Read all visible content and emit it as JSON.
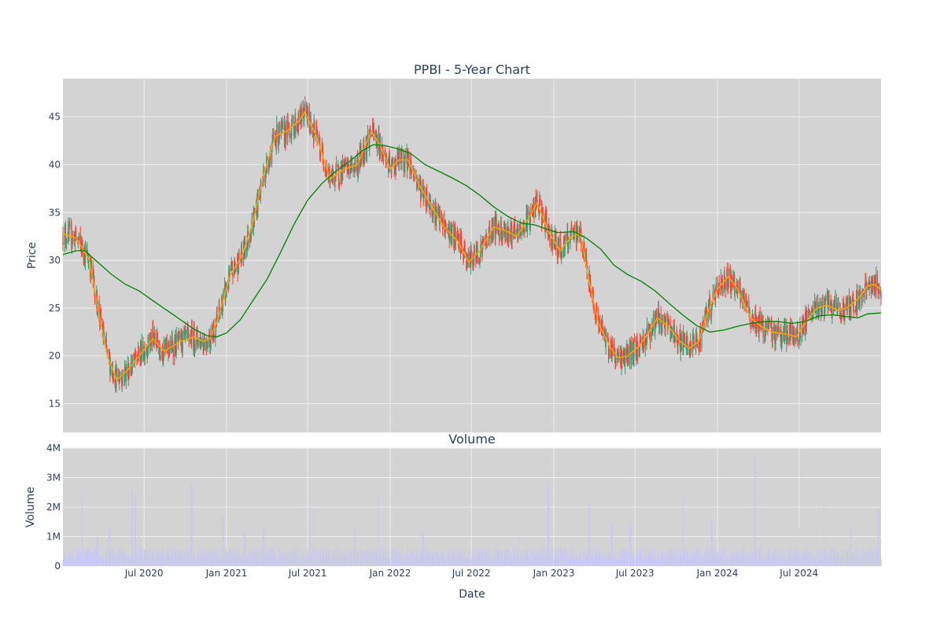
{
  "colors": {
    "background": "#ffffff",
    "plot_background": "#d3d3d3",
    "grid": "#eeeeee",
    "text": "#2a3f5f",
    "candle_up": "#3d9970",
    "candle_down": "#ff4136",
    "ma_short": "#ffa500",
    "ma_long": "#008000",
    "volume": "#c8c8f0"
  },
  "chart_data": [
    {
      "type": "candlestick",
      "title": "PPBI - 5-Year Chart",
      "ylabel": "Price",
      "xlabel": "",
      "x_range": [
        "2020-01-02",
        "2024-12-31"
      ],
      "ylim": [
        12,
        49
      ],
      "y_ticks": [
        15,
        20,
        25,
        30,
        35,
        40,
        45
      ],
      "grid": true,
      "legend": "none",
      "series": [
        {
          "type": "candlestick",
          "color_up": "#3d9970",
          "color_down": "#ff4136"
        },
        {
          "type": "line",
          "color": "#ffa500",
          "points": [
            [
              "2020-01-02",
              32.8
            ],
            [
              "2020-02-01",
              32.3
            ],
            [
              "2020-03-01",
              30.0
            ],
            [
              "2020-03-20",
              25.0
            ],
            [
              "2020-04-10",
              20.0
            ],
            [
              "2020-05-01",
              17.5
            ],
            [
              "2020-05-25",
              18.5
            ],
            [
              "2020-06-20",
              20.0
            ],
            [
              "2020-07-20",
              21.8
            ],
            [
              "2020-08-15",
              20.5
            ],
            [
              "2020-09-20",
              21.5
            ],
            [
              "2020-10-20",
              22.0
            ],
            [
              "2020-11-10",
              21.5
            ],
            [
              "2020-11-25",
              21.8
            ],
            [
              "2020-12-10",
              23.5
            ],
            [
              "2021-01-10",
              28.5
            ],
            [
              "2021-02-05",
              30.5
            ],
            [
              "2021-03-01",
              34.0
            ],
            [
              "2021-03-25",
              39.0
            ],
            [
              "2021-04-20",
              43.0
            ],
            [
              "2021-05-15",
              43.5
            ],
            [
              "2021-06-10",
              44.5
            ],
            [
              "2021-06-25",
              45.5
            ],
            [
              "2021-07-20",
              43.0
            ],
            [
              "2021-08-20",
              38.5
            ],
            [
              "2021-09-20",
              39.5
            ],
            [
              "2021-10-20",
              40.0
            ],
            [
              "2021-11-20",
              43.5
            ],
            [
              "2021-12-10",
              42.0
            ],
            [
              "2022-01-01",
              39.5
            ],
            [
              "2022-01-20",
              40.5
            ],
            [
              "2022-02-10",
              40.5
            ],
            [
              "2022-03-05",
              38.0
            ],
            [
              "2022-04-05",
              35.5
            ],
            [
              "2022-05-01",
              33.5
            ],
            [
              "2022-06-01",
              32.0
            ],
            [
              "2022-06-25",
              29.8
            ],
            [
              "2022-07-20",
              31.0
            ],
            [
              "2022-08-20",
              33.5
            ],
            [
              "2022-09-20",
              33.0
            ],
            [
              "2022-10-10",
              32.5
            ],
            [
              "2022-11-01",
              34.0
            ],
            [
              "2022-11-25",
              36.0
            ],
            [
              "2022-12-20",
              33.0
            ],
            [
              "2023-01-15",
              31.0
            ],
            [
              "2023-02-10",
              32.5
            ],
            [
              "2023-03-01",
              32.8
            ],
            [
              "2023-03-20",
              28.0
            ],
            [
              "2023-04-10",
              23.5
            ],
            [
              "2023-05-05",
              21.0
            ],
            [
              "2023-05-25",
              19.8
            ],
            [
              "2023-06-15",
              20.0
            ],
            [
              "2023-07-10",
              21.0
            ],
            [
              "2023-08-01",
              22.5
            ],
            [
              "2023-08-20",
              24.0
            ],
            [
              "2023-09-15",
              23.0
            ],
            [
              "2023-10-10",
              21.5
            ],
            [
              "2023-10-30",
              20.8
            ],
            [
              "2023-11-20",
              21.5
            ],
            [
              "2023-12-10",
              24.5
            ],
            [
              "2024-01-01",
              27.0
            ],
            [
              "2024-01-25",
              28.3
            ],
            [
              "2024-02-15",
              27.0
            ],
            [
              "2024-03-15",
              24.0
            ],
            [
              "2024-04-10",
              23.0
            ],
            [
              "2024-05-01",
              22.5
            ],
            [
              "2024-06-01",
              22.3
            ],
            [
              "2024-06-25",
              22.0
            ],
            [
              "2024-07-15",
              23.5
            ],
            [
              "2024-08-10",
              25.0
            ],
            [
              "2024-09-01",
              25.3
            ],
            [
              "2024-09-25",
              24.8
            ],
            [
              "2024-10-15",
              25.0
            ],
            [
              "2024-11-10",
              26.0
            ],
            [
              "2024-12-01",
              27.3
            ],
            [
              "2024-12-15",
              27.5
            ],
            [
              "2024-12-31",
              26.9
            ]
          ]
        },
        {
          "type": "line",
          "color": "#008000",
          "points": [
            [
              "2020-01-02",
              30.6
            ],
            [
              "2020-02-01",
              31.0
            ],
            [
              "2020-02-20",
              31.0
            ],
            [
              "2020-03-15",
              30.0
            ],
            [
              "2020-04-20",
              28.5
            ],
            [
              "2020-05-20",
              27.5
            ],
            [
              "2020-06-20",
              26.8
            ],
            [
              "2020-07-20",
              25.8
            ],
            [
              "2020-08-20",
              24.8
            ],
            [
              "2020-09-20",
              23.8
            ],
            [
              "2020-10-20",
              22.8
            ],
            [
              "2020-11-20",
              22.1
            ],
            [
              "2020-12-10",
              22.0
            ],
            [
              "2021-01-01",
              22.4
            ],
            [
              "2021-02-01",
              23.8
            ],
            [
              "2021-03-01",
              25.8
            ],
            [
              "2021-04-01",
              28.0
            ],
            [
              "2021-05-01",
              30.8
            ],
            [
              "2021-06-01",
              33.8
            ],
            [
              "2021-07-01",
              36.3
            ],
            [
              "2021-08-01",
              38.0
            ],
            [
              "2021-09-01",
              39.3
            ],
            [
              "2021-10-01",
              40.3
            ],
            [
              "2021-11-01",
              41.5
            ],
            [
              "2021-11-25",
              42.1
            ],
            [
              "2021-12-20",
              42.0
            ],
            [
              "2022-01-15",
              41.7
            ],
            [
              "2022-02-15",
              41.2
            ],
            [
              "2022-03-20",
              40.0
            ],
            [
              "2022-04-20",
              39.3
            ],
            [
              "2022-05-20",
              38.6
            ],
            [
              "2022-06-20",
              37.8
            ],
            [
              "2022-07-20",
              36.8
            ],
            [
              "2022-08-20",
              35.6
            ],
            [
              "2022-09-20",
              34.6
            ],
            [
              "2022-10-20",
              33.9
            ],
            [
              "2022-11-20",
              33.7
            ],
            [
              "2022-12-20",
              33.2
            ],
            [
              "2023-01-10",
              32.9
            ],
            [
              "2023-02-15",
              33.0
            ],
            [
              "2023-03-15",
              32.3
            ],
            [
              "2023-04-15",
              31.2
            ],
            [
              "2023-05-15",
              29.5
            ],
            [
              "2023-06-15",
              28.5
            ],
            [
              "2023-07-15",
              27.8
            ],
            [
              "2023-08-15",
              26.8
            ],
            [
              "2023-09-15",
              25.5
            ],
            [
              "2023-10-15",
              24.3
            ],
            [
              "2023-11-15",
              23.2
            ],
            [
              "2023-12-15",
              22.5
            ],
            [
              "2024-01-15",
              22.7
            ],
            [
              "2024-02-15",
              23.1
            ],
            [
              "2024-03-15",
              23.4
            ],
            [
              "2024-04-15",
              23.6
            ],
            [
              "2024-05-15",
              23.6
            ],
            [
              "2024-06-15",
              23.4
            ],
            [
              "2024-07-15",
              23.6
            ],
            [
              "2024-08-15",
              24.2
            ],
            [
              "2024-09-15",
              24.3
            ],
            [
              "2024-10-15",
              24.1
            ],
            [
              "2024-11-10",
              24.0
            ],
            [
              "2024-12-01",
              24.4
            ],
            [
              "2024-12-31",
              24.5
            ]
          ]
        }
      ]
    },
    {
      "type": "bar",
      "title": "Volume",
      "xlabel": "Date",
      "ylabel": "Volume",
      "x_range": [
        "2020-01-02",
        "2024-12-31"
      ],
      "ylim": [
        0,
        4000000
      ],
      "y_ticks": [
        0,
        1000000,
        2000000,
        3000000,
        4000000
      ],
      "y_tick_labels": [
        "0",
        "1M",
        "2M",
        "3M",
        "4M"
      ],
      "x_ticks": [
        "2020-07-01",
        "2021-01-01",
        "2021-07-01",
        "2022-01-01",
        "2022-07-01",
        "2023-01-01",
        "2023-07-01",
        "2024-01-01",
        "2024-07-01"
      ],
      "x_tick_labels": [
        "Jul 2020",
        "Jan 2021",
        "Jul 2021",
        "Jan 2022",
        "Jul 2022",
        "Jan 2023",
        "Jul 2023",
        "Jan 2024",
        "Jul 2024"
      ],
      "baseline": 400000,
      "spikes": [
        [
          "2020-02-15",
          2600000
        ],
        [
          "2020-03-20",
          1000000
        ],
        [
          "2020-04-15",
          1300000
        ],
        [
          "2020-06-05",
          2600000
        ],
        [
          "2020-06-12",
          2400000
        ],
        [
          "2020-06-20",
          1400000
        ],
        [
          "2020-10-15",
          2800000
        ],
        [
          "2020-12-25",
          1700000
        ],
        [
          "2021-02-10",
          1100000
        ],
        [
          "2021-03-25",
          1300000
        ],
        [
          "2021-07-05",
          2000000
        ],
        [
          "2021-10-15",
          1300000
        ],
        [
          "2021-12-05",
          2450000
        ],
        [
          "2022-03-15",
          1100000
        ],
        [
          "2022-10-15",
          1100000
        ],
        [
          "2022-12-20",
          2800000
        ],
        [
          "2023-03-20",
          2100000
        ],
        [
          "2023-05-10",
          1400000
        ],
        [
          "2023-06-20",
          1500000
        ],
        [
          "2023-10-15",
          2500000
        ],
        [
          "2023-12-20",
          1600000
        ],
        [
          "2024-03-25",
          3800000
        ],
        [
          "2024-06-30",
          1300000
        ],
        [
          "2024-08-25",
          2600000
        ],
        [
          "2024-10-25",
          1400000
        ],
        [
          "2024-12-25",
          1900000
        ]
      ]
    }
  ]
}
